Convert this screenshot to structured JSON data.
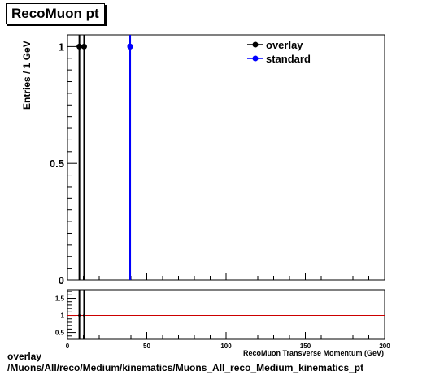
{
  "title": "RecoMuon pt",
  "caption": {
    "line1": "overlay",
    "line2": "/Muons/All/reco/Medium/kinematics/Muons_All_reco_Medium_kinematics_pt"
  },
  "colors": {
    "overlay": "#000000",
    "standard": "#0000ff",
    "ratio_line": "#cc0000"
  },
  "chart_data": [
    {
      "type": "line",
      "panel": "main",
      "ylabel": "Entries / 1 GeV",
      "xlim": [
        0,
        200
      ],
      "ylim": [
        0,
        1.05
      ],
      "yticks": [
        0,
        0.5,
        1
      ],
      "ytick_labels": [
        "0",
        "0.5",
        "1"
      ],
      "legend_position": "top-right",
      "series": [
        {
          "name": "overlay",
          "color": "#000000",
          "x": [
            7.5,
            10.5,
            39.5
          ],
          "y": [
            1,
            1,
            1
          ]
        },
        {
          "name": "standard",
          "color": "#0000ff",
          "x": [
            39.5
          ],
          "y": [
            1
          ]
        }
      ]
    },
    {
      "type": "line",
      "panel": "ratio",
      "xlabel": "RecoMuon Transverse Momentum (GeV)",
      "xlim": [
        0,
        200
      ],
      "ylim": [
        0.3,
        1.75
      ],
      "xticks": [
        0,
        50,
        100,
        150,
        200
      ],
      "xtick_labels": [
        "0",
        "50",
        "100",
        "150",
        "200"
      ],
      "yticks": [
        0.5,
        1,
        1.5
      ],
      "ytick_labels": [
        "0.5",
        "1",
        "1.5"
      ],
      "reference_line": 1,
      "series": [
        {
          "name": "",
          "color": "#000000",
          "x": [
            7.5,
            10.5
          ],
          "y": [
            1,
            1
          ]
        }
      ]
    }
  ]
}
